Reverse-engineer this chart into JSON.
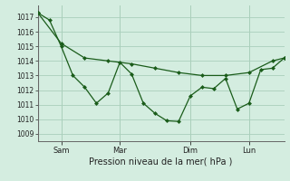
{
  "title": "",
  "xlabel": "Pression niveau de la mer( hPa )",
  "background_color": "#d4ede0",
  "grid_color": "#aacfbb",
  "line_color": "#1a5c1a",
  "ylim": [
    1008.5,
    1017.8
  ],
  "yticks": [
    1009,
    1010,
    1011,
    1012,
    1013,
    1014,
    1015,
    1016,
    1017
  ],
  "xlim": [
    0,
    21
  ],
  "xtick_positions": [
    2,
    7,
    13,
    18
  ],
  "xtick_labels": [
    "Sam",
    "Mar",
    "Dim",
    "Lun"
  ],
  "series1_x": [
    0,
    2,
    4,
    6,
    8,
    10,
    12,
    14,
    16,
    18,
    20,
    21
  ],
  "series1_y": [
    1017.3,
    1015.2,
    1014.2,
    1014.0,
    1013.8,
    1013.5,
    1013.2,
    1013.0,
    1013.0,
    1013.2,
    1014.0,
    1014.2
  ],
  "series2_x": [
    0,
    1,
    2,
    3,
    4,
    5,
    6,
    7,
    8,
    9,
    10,
    11,
    12,
    13,
    14,
    15,
    16,
    17,
    18,
    19,
    20,
    21
  ],
  "series2_y": [
    1017.3,
    1016.8,
    1015.0,
    1013.0,
    1012.2,
    1011.1,
    1011.8,
    1013.9,
    1013.1,
    1011.1,
    1010.4,
    1009.9,
    1009.85,
    1011.6,
    1012.2,
    1012.1,
    1012.8,
    1010.7,
    1011.1,
    1013.4,
    1013.5,
    1014.2
  ],
  "figsize": [
    3.2,
    2.0
  ],
  "dpi": 100
}
